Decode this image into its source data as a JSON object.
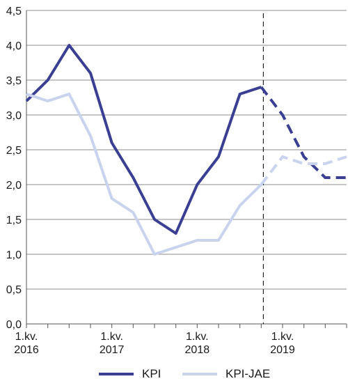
{
  "chart_data": {
    "type": "line",
    "ylim": [
      0,
      4.5
    ],
    "yticks": [
      "0,0",
      "0,5",
      "1,0",
      "1,5",
      "2,0",
      "2,5",
      "3,0",
      "3,5",
      "4,0",
      "4,5"
    ],
    "yticks_values": [
      0,
      0.5,
      1,
      1.5,
      2,
      2.5,
      3,
      3.5,
      4,
      4.5
    ],
    "xlim": [
      0,
      15
    ],
    "xticks": [
      {
        "line1": "1.kv.",
        "line2": "2016",
        "x": 0
      },
      {
        "line1": "1.kv.",
        "line2": "2017",
        "x": 4
      },
      {
        "line1": "1.kv.",
        "line2": "2018",
        "x": 8
      },
      {
        "line1": "1.kv.",
        "line2": "2019",
        "x": 12
      }
    ],
    "x_minor_ticks": [
      0,
      1,
      2,
      3,
      4,
      5,
      6,
      7,
      8,
      9,
      10,
      11,
      12,
      13,
      14,
      15
    ],
    "grid": "horizontal",
    "forecast_divider_x": 11.1,
    "series": [
      {
        "name": "KPI",
        "color": "#3a3f93",
        "values": [
          3.2,
          3.5,
          4.0,
          3.6,
          2.6,
          2.1,
          1.5,
          1.3,
          2.0,
          2.4,
          3.3,
          3.4,
          3.0,
          2.4,
          2.1,
          2.1
        ],
        "forecast_from": 11
      },
      {
        "name": "KPI-JAE",
        "color": "#c9d3ed",
        "values": [
          3.3,
          3.2,
          3.3,
          2.7,
          1.8,
          1.6,
          1.0,
          1.1,
          1.2,
          1.2,
          1.7,
          2.0,
          2.4,
          2.3,
          2.3,
          2.4
        ],
        "forecast_from": 11
      }
    ],
    "legend_position": "bottom"
  }
}
